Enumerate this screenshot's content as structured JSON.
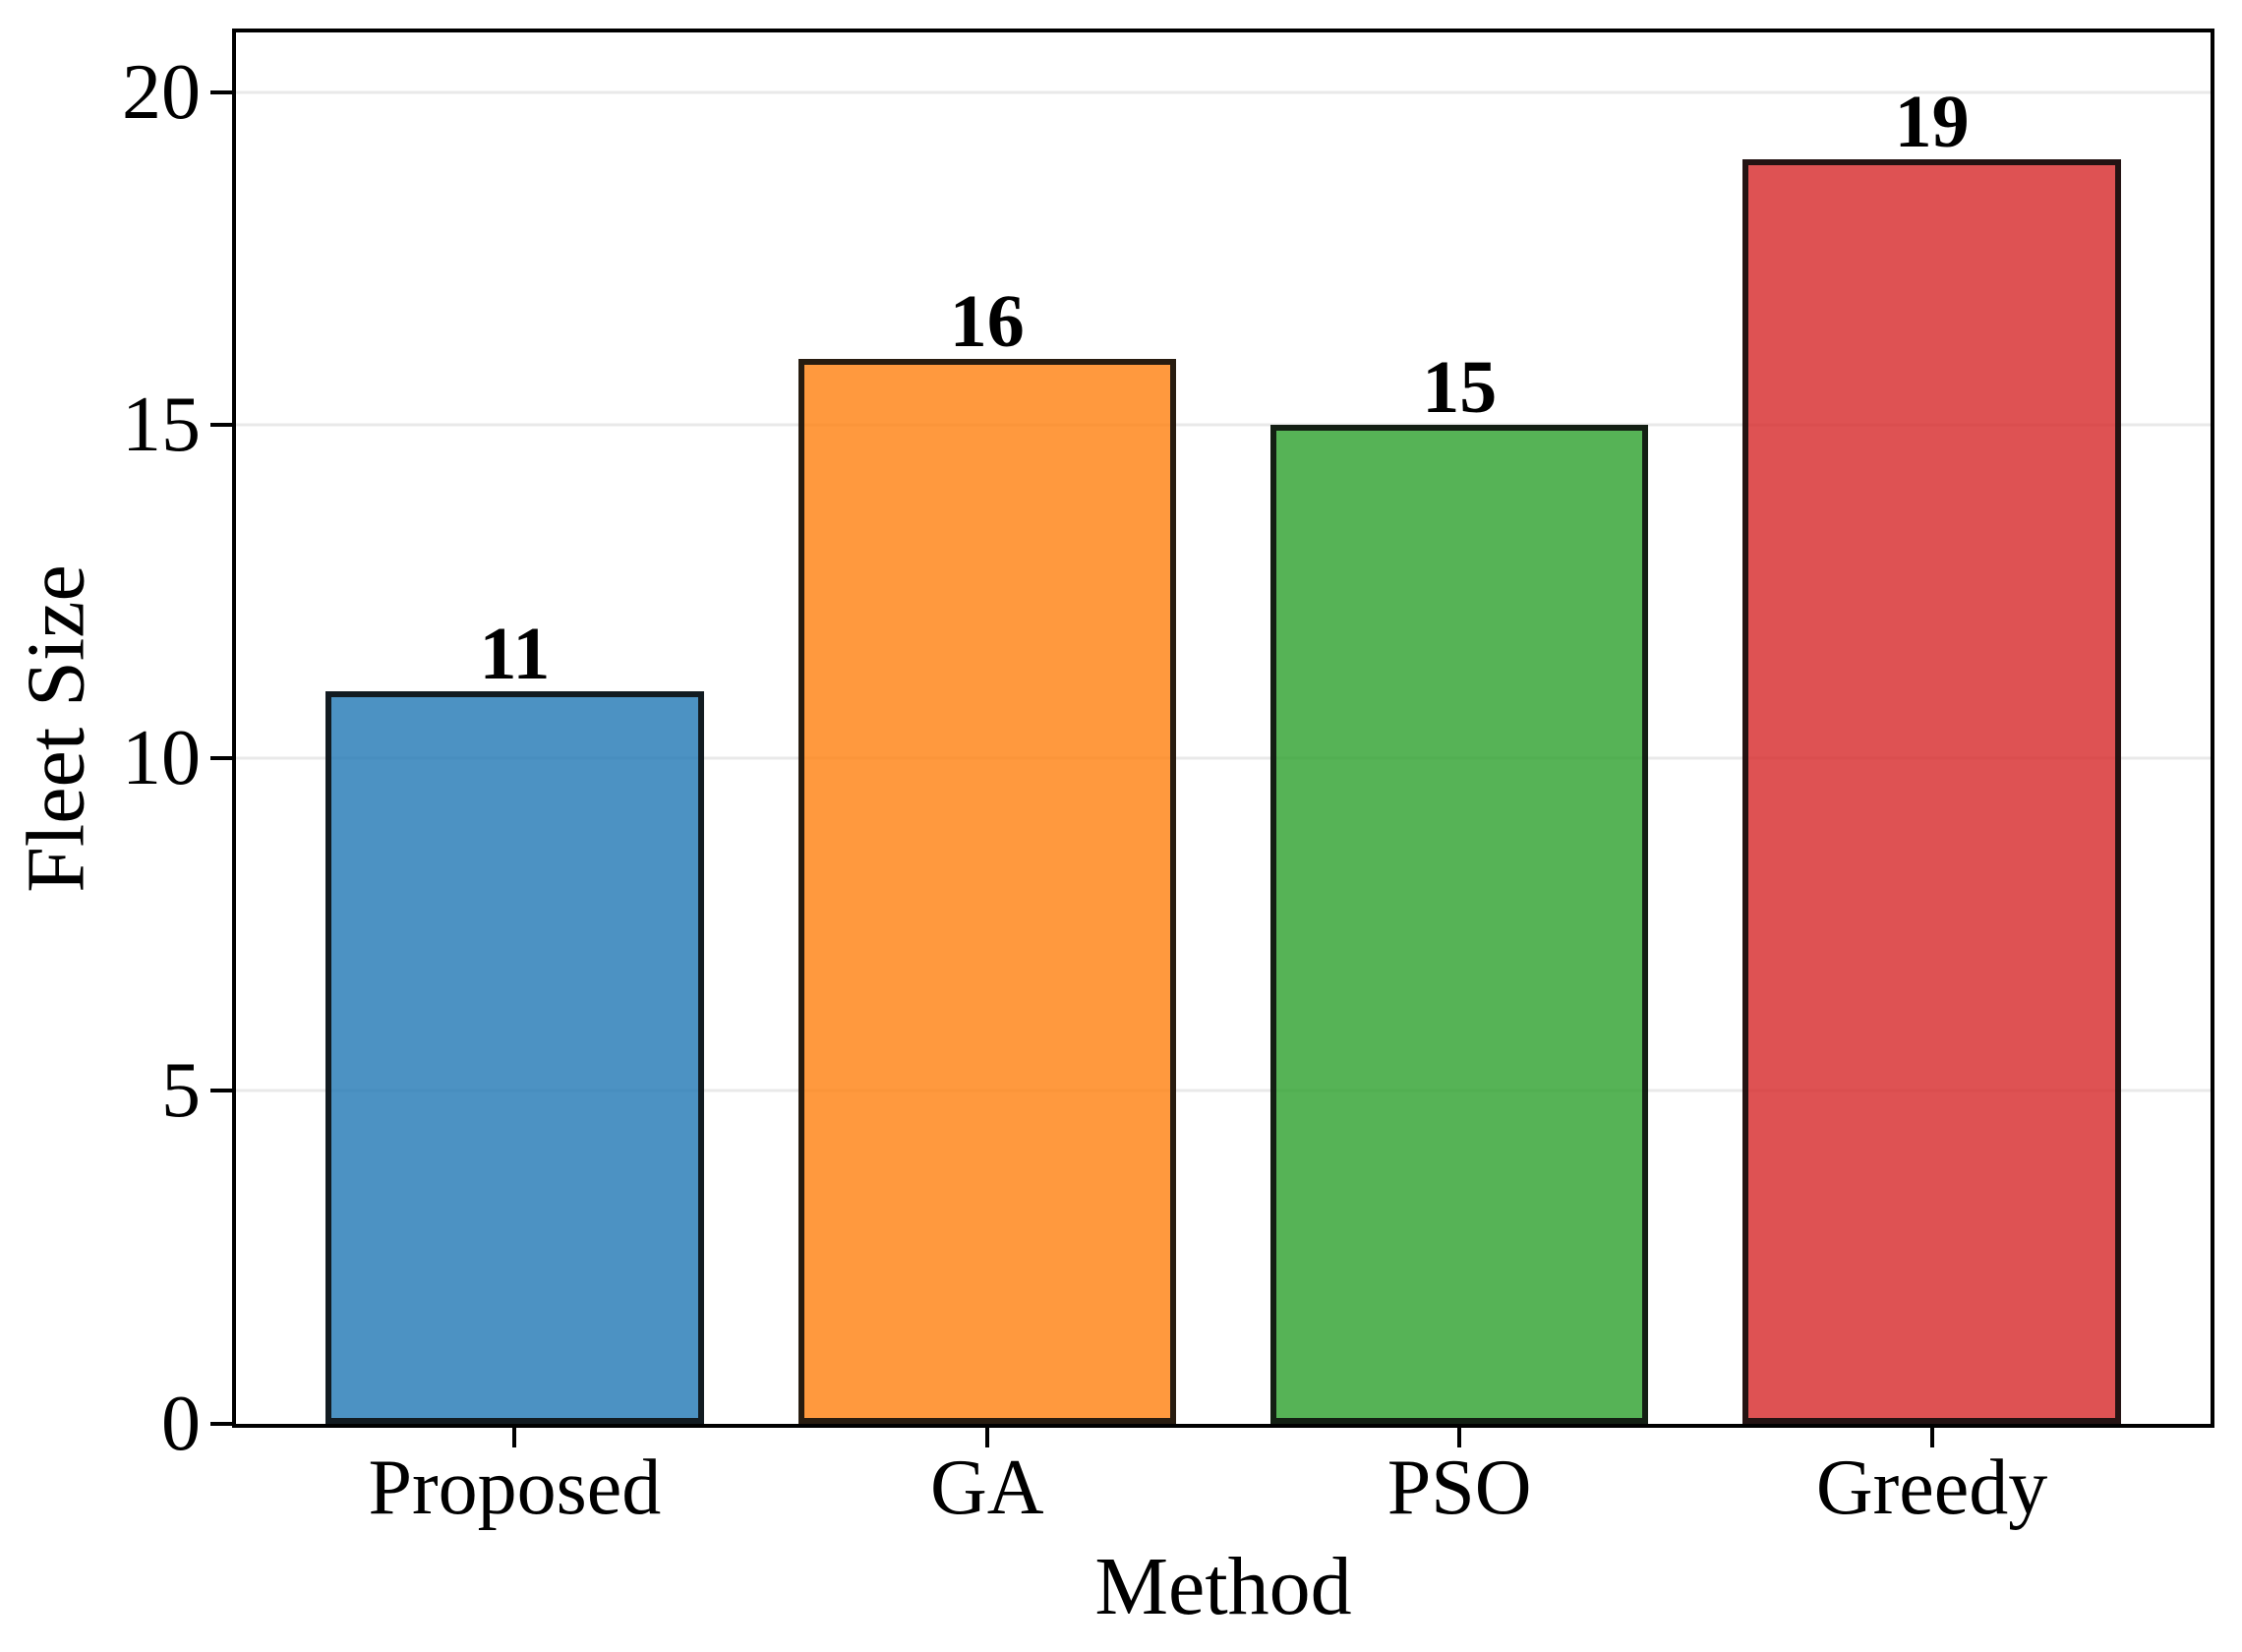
{
  "figure": {
    "background": "#ffffff"
  },
  "chart_data": {
    "type": "bar",
    "title": "",
    "xlabel": "Method",
    "ylabel": "Fleet Size",
    "categories": [
      "Proposed",
      "GA",
      "PSO",
      "Greedy"
    ],
    "values": [
      11,
      16,
      15,
      19
    ],
    "value_labels": [
      "11",
      "16",
      "15",
      "19"
    ],
    "series": [
      {
        "name": "Fleet Size",
        "values": [
          11,
          16,
          15,
          19
        ]
      }
    ],
    "bar_colors": [
      "#1F77B4",
      "#FF7F0E",
      "#2CA02C",
      "#D62728"
    ],
    "bar_fill_opacity": 0.8,
    "bar_edge_color": "#000000",
    "yticks": [
      0,
      5,
      10,
      15,
      20
    ],
    "ylim": [
      0,
      20.9
    ],
    "grid": "horizontal",
    "gridline_color": "#e9e9e9",
    "legend": "none"
  }
}
